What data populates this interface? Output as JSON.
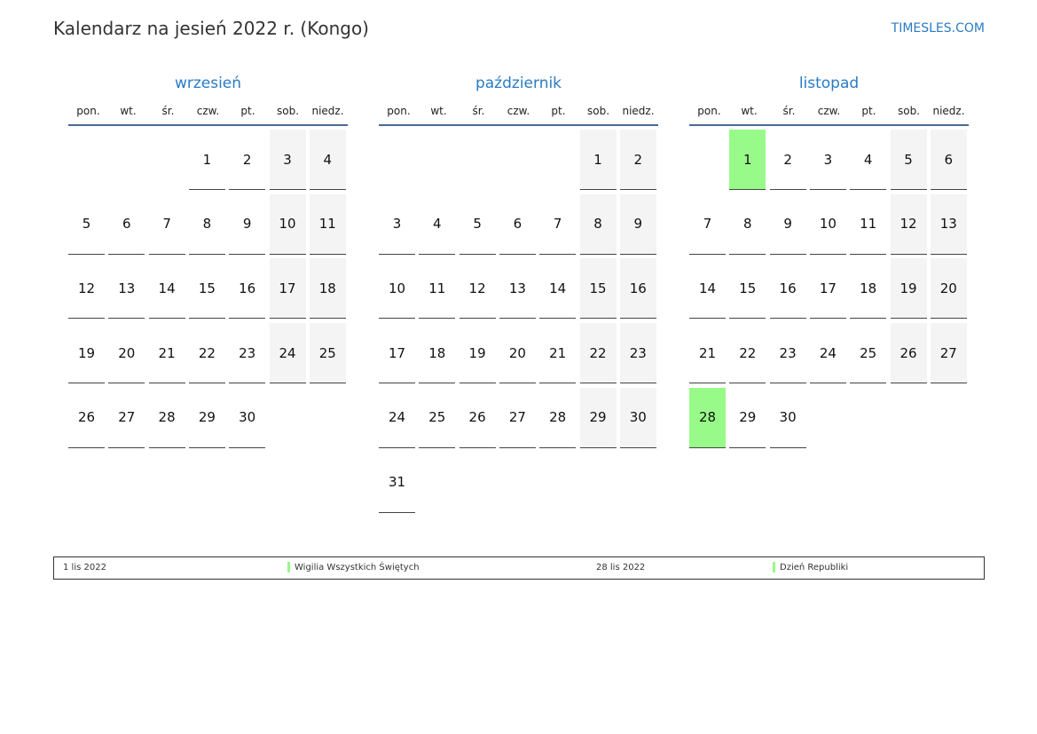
{
  "header": {
    "title": "Kalendarz na jesień 2022 r. (Kongo)",
    "brand": "TIMESLES.COM"
  },
  "weekdays": [
    "pon.",
    "wt.",
    "śr.",
    "czw.",
    "pt.",
    "sob.",
    "niedz."
  ],
  "colors": {
    "accent": "#2a7bc4",
    "holiday": "#98fb89",
    "weekend": "#f4f4f4"
  },
  "months": [
    {
      "name": "wrzesień",
      "offset": 3,
      "days": 30,
      "holidays": []
    },
    {
      "name": "październik",
      "offset": 5,
      "days": 31,
      "holidays": []
    },
    {
      "name": "listopad",
      "offset": 1,
      "days": 30,
      "holidays": [
        1,
        28
      ]
    }
  ],
  "legend": [
    {
      "date": "1 lis 2022",
      "name": "Wigilia Wszystkich Świętych"
    },
    {
      "date": "28 lis 2022",
      "name": "Dzień Republiki"
    }
  ]
}
